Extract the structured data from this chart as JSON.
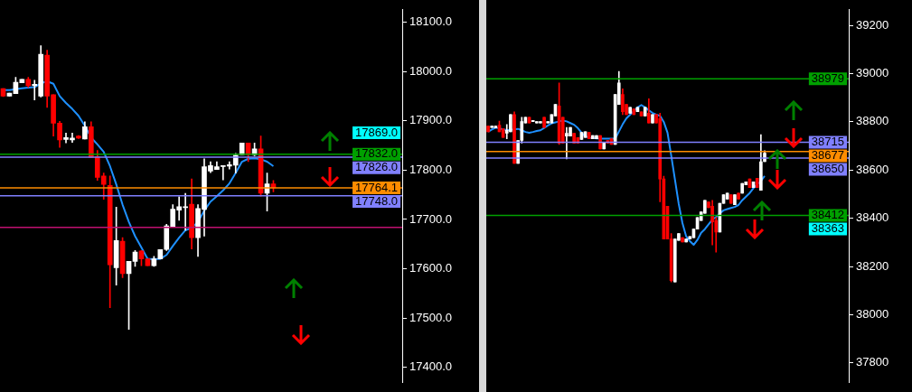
{
  "chart_data": [
    {
      "type": "candlestick",
      "tick_labels": "y",
      "categories": [
        null,
        null,
        null,
        null,
        null,
        null,
        null,
        null,
        null,
        null,
        null,
        null,
        null,
        null,
        null,
        null,
        null,
        null,
        null,
        null,
        null,
        null,
        null,
        null,
        null,
        null,
        null,
        null,
        null,
        null,
        null,
        null,
        null,
        null,
        null,
        null,
        null,
        null,
        null,
        null,
        null,
        null,
        null,
        null,
        null,
        null,
        null,
        null,
        null,
        null,
        null,
        null,
        null,
        null,
        null,
        null,
        null,
        null,
        null,
        null,
        null,
        null,
        null,
        null
      ],
      "ohlc": [
        [
          17965,
          17965,
          17949,
          17950
        ],
        [
          17950,
          17956,
          17950,
          17956
        ],
        [
          17955,
          17988,
          17955,
          17978
        ],
        [
          17977,
          17984,
          17977,
          17984
        ],
        [
          17984,
          17988,
          17968,
          17971
        ],
        [
          17971,
          17982,
          17942,
          17974
        ],
        [
          17950,
          18052,
          17948,
          18035
        ],
        [
          18033,
          18043,
          17927,
          17950
        ],
        [
          17953,
          17953,
          17869,
          17895
        ],
        [
          17895,
          17899,
          17846,
          17861
        ],
        [
          17862,
          17875,
          17855,
          17866
        ],
        [
          17861,
          17875,
          17856,
          17865
        ],
        [
          17869,
          17870,
          17864,
          17865
        ],
        [
          17863,
          17898,
          17863,
          17888
        ],
        [
          17888,
          17898,
          17826,
          17826
        ],
        [
          17827,
          17840,
          17779,
          17785
        ],
        [
          17788,
          17794,
          17741,
          17771
        ],
        [
          17769,
          17788,
          17521,
          17608
        ],
        [
          17602,
          17725,
          17567,
          17657
        ],
        [
          17656,
          17663,
          17582,
          17590
        ],
        [
          17590,
          17615,
          17477,
          17615
        ],
        [
          17615,
          17637,
          17605,
          17634
        ],
        [
          17636,
          17637,
          17606,
          17620
        ],
        [
          17620,
          17620,
          17606,
          17606
        ],
        [
          17606,
          17625,
          17605,
          17620
        ],
        [
          17620,
          17639,
          17620,
          17639
        ],
        [
          17639,
          17690,
          17637,
          17687
        ],
        [
          17686,
          17730,
          17686,
          17721
        ],
        [
          17719,
          17746,
          17698,
          17726
        ],
        [
          17724,
          17753,
          17678,
          17726
        ],
        [
          17731,
          17782,
          17640,
          17663
        ],
        [
          17663,
          17730,
          17625,
          17722
        ],
        [
          17720,
          17823,
          17666,
          17807
        ],
        [
          17798,
          17817,
          17795,
          17809
        ],
        [
          17801,
          17817,
          17801,
          17807
        ],
        [
          17807,
          17809,
          17780,
          17809
        ],
        [
          17808,
          17817,
          17802,
          17811
        ],
        [
          17810,
          17834,
          17794,
          17830
        ],
        [
          17831,
          17855,
          17831,
          17855
        ],
        [
          17855,
          17855,
          17817,
          17831
        ],
        [
          17831,
          17855,
          17829,
          17843
        ],
        [
          17843,
          17869,
          17747,
          17753
        ],
        [
          17753,
          17794,
          17717,
          17772
        ],
        [
          17772,
          17779,
          17756,
          17764
        ],
        null,
        null,
        null,
        null,
        null,
        null,
        null,
        null,
        null,
        null,
        null,
        null,
        null,
        null,
        null,
        null,
        null,
        null,
        null,
        null
      ],
      "series": [
        {
          "type": "line",
          "color": "#1e90ff",
          "values": [
            17962,
            17962,
            17964,
            17966,
            17967,
            17968,
            17976,
            17980,
            17975,
            17950,
            17936,
            17924,
            17910,
            17890,
            17866,
            17852,
            17837,
            17808,
            17771,
            17730,
            17695,
            17666,
            17643,
            17620,
            17620,
            17620,
            17628,
            17646,
            17663,
            17678,
            17683,
            17695,
            17718,
            17736,
            17747,
            17759,
            17773,
            17794,
            17817,
            17823,
            17824,
            17822,
            17817,
            17808,
            null,
            null,
            null,
            null,
            null,
            null,
            null,
            null,
            null,
            null,
            null,
            null,
            null,
            null,
            null,
            null,
            null,
            null,
            null,
            null
          ]
        }
      ],
      "ylim": [
        17370,
        18125
      ],
      "yticks": [
        {
          "value": 18100,
          "label": "18100.0"
        },
        {
          "value": 18000,
          "label": "18000.0"
        },
        {
          "value": 17900,
          "label": "17900.0"
        },
        {
          "value": 17800,
          "label": "17800.0"
        },
        {
          "value": 17700,
          "label": "17700.0"
        },
        {
          "value": 17600,
          "label": "17600.0"
        },
        {
          "value": 17500,
          "label": "17500.0"
        },
        {
          "value": 17400,
          "label": "17400.0"
        }
      ],
      "annotations": [
        "17869.0"
      ],
      "ref_lines": [
        {
          "axis": "y",
          "value": 17832,
          "label": "17832.0",
          "color": "#00a000",
          "line_style": "solid"
        },
        {
          "axis": "y",
          "value": 17826,
          "label": "17826.0",
          "color": "#8080ff",
          "line_style": "solid"
        },
        {
          "axis": "y",
          "value": 17764.1,
          "label": "17764.1",
          "color": "#ff8c00",
          "line_style": "solid"
        },
        {
          "axis": "y",
          "value": 17748,
          "label": "17748.0",
          "color": "#8080ff",
          "line_style": "solid"
        },
        {
          "axis": "y",
          "value": 17684,
          "color": "#c01070",
          "line_style": "solid"
        }
      ]
    },
    {
      "type": "candlestick",
      "tick_labels": "y",
      "categories": [
        null,
        null,
        null,
        null,
        null,
        null,
        null,
        null,
        null,
        null,
        null,
        null,
        null,
        null,
        null,
        null,
        null,
        null,
        null,
        null,
        null,
        null,
        null,
        null,
        null,
        null,
        null,
        null,
        null,
        null,
        null,
        null,
        null,
        null,
        null,
        null,
        null,
        null,
        null,
        null,
        null,
        null,
        null,
        null,
        null,
        null,
        null,
        null,
        null,
        null,
        null,
        null,
        null,
        null,
        null,
        null,
        null,
        null,
        null,
        null,
        null,
        null,
        null,
        null,
        null,
        null,
        null,
        null,
        null,
        null,
        null,
        null,
        null,
        null,
        null,
        null,
        null,
        null,
        null,
        null,
        null,
        null,
        null,
        null,
        null,
        null,
        null,
        null,
        null,
        null,
        null,
        null,
        null,
        null,
        null,
        null,
        null
      ],
      "ohlc": [
        [
          38783,
          38783,
          38759,
          38759
        ],
        [
          38777,
          38783,
          38777,
          38783
        ],
        [
          38775,
          38783,
          38775,
          38783
        ],
        [
          38786,
          38803,
          38759,
          38759
        ],
        [
          38771,
          38771,
          38735,
          38735
        ],
        [
          38753,
          38789,
          38730,
          38765
        ],
        [
          38759,
          38830,
          38759,
          38830
        ],
        [
          38830,
          38842,
          38628,
          38628
        ],
        [
          38628,
          38723,
          38628,
          38723
        ],
        [
          38723,
          38819,
          38712,
          38801
        ],
        [
          38795,
          38819,
          38795,
          38819
        ],
        [
          38819,
          38819,
          38795,
          38795
        ],
        [
          38801,
          38806,
          38801,
          38806
        ],
        [
          38795,
          38801,
          38795,
          38801
        ],
        [
          38795,
          38801,
          38795,
          38801
        ],
        [
          38819,
          38819,
          38777,
          38777
        ],
        [
          38795,
          38801,
          38795,
          38801
        ],
        [
          38795,
          38830,
          38795,
          38830
        ],
        [
          38824,
          38872,
          38824,
          38872
        ],
        [
          38866,
          38961,
          38706,
          38712
        ],
        [
          38819,
          38819,
          38712,
          38712
        ],
        [
          38741,
          38777,
          38646,
          38753
        ],
        [
          38741,
          38777,
          38741,
          38777
        ],
        [
          38753,
          38753,
          38712,
          38712
        ],
        [
          38735,
          38735,
          38712,
          38712
        ],
        [
          38727,
          38756,
          38727,
          38756
        ],
        [
          38735,
          38759,
          38735,
          38759
        ],
        [
          38756,
          38756,
          38730,
          38730
        ],
        [
          38730,
          38743,
          38730,
          38743
        ],
        [
          38730,
          38743,
          38730,
          38743
        ],
        [
          38743,
          38743,
          38688,
          38688
        ],
        [
          38688,
          38712,
          38688,
          38712
        ],
        [
          38723,
          38723,
          38712,
          38712
        ],
        [
          38730,
          38730,
          38706,
          38706
        ],
        [
          38706,
          38914,
          38706,
          38914
        ],
        [
          38872,
          39009,
          38872,
          38961
        ],
        [
          38914,
          38937,
          38830,
          38842
        ],
        [
          38872,
          38872,
          38830,
          38830
        ],
        [
          38836,
          38860,
          38836,
          38860
        ],
        [
          38854,
          38854,
          38830,
          38830
        ],
        [
          38842,
          38860,
          38842,
          38860
        ],
        [
          38842,
          38842,
          38824,
          38824
        ],
        [
          38824,
          38860,
          38824,
          38860
        ],
        [
          38836,
          38896,
          38795,
          38795
        ],
        [
          38795,
          38830,
          38795,
          38830
        ],
        [
          38830,
          38830,
          38795,
          38795
        ],
        [
          38813,
          38836,
          38468,
          38563
        ],
        [
          38563,
          38575,
          38314,
          38314
        ],
        [
          38450,
          38450,
          38314,
          38314
        ],
        [
          38314,
          38337,
          38136,
          38142
        ],
        [
          38136,
          38314,
          38136,
          38314
        ],
        [
          38308,
          38337,
          38308,
          38337
        ],
        [
          38320,
          38320,
          38302,
          38302
        ],
        [
          38302,
          38314,
          38302,
          38314
        ],
        [
          38314,
          38325,
          38314,
          38325
        ],
        [
          38320,
          38355,
          38320,
          38355
        ],
        [
          38355,
          38403,
          38355,
          38403
        ],
        [
          38391,
          38427,
          38391,
          38427
        ],
        [
          38421,
          38474,
          38421,
          38474
        ],
        [
          38468,
          38468,
          38444,
          38444
        ],
        [
          38450,
          38474,
          38290,
          38385
        ],
        [
          38391,
          38403,
          38260,
          38343
        ],
        [
          38343,
          38462,
          38343,
          38462
        ],
        [
          38462,
          38498,
          38462,
          38498
        ],
        [
          38480,
          38504,
          38480,
          38504
        ],
        [
          38498,
          38498,
          38462,
          38462
        ],
        [
          38456,
          38498,
          38456,
          38498
        ],
        [
          38504,
          38504,
          38480,
          38480
        ],
        [
          38504,
          38545,
          38504,
          38545
        ],
        [
          38539,
          38551,
          38539,
          38551
        ],
        [
          38563,
          38563,
          38527,
          38527
        ],
        [
          38527,
          38551,
          38527,
          38551
        ],
        [
          38566,
          38566,
          38527,
          38527
        ],
        [
          38516,
          38747,
          38516,
          38635
        ],
        [
          38635,
          38680,
          38635,
          38670
        ],
        null,
        null,
        null,
        null,
        null,
        null,
        null,
        null,
        null,
        null,
        null,
        null,
        null,
        null,
        null,
        null,
        null,
        null,
        null,
        null,
        null,
        null
      ],
      "series": [
        {
          "type": "line",
          "color": "#1e90ff",
          "values": [
            38759,
            38768,
            38776,
            38773,
            38769,
            38766,
            38767,
            38769,
            38771,
            38765,
            38758,
            38755,
            38758,
            38762,
            38765,
            38775,
            38785,
            38794,
            38798,
            38802,
            38805,
            38802,
            38795,
            38788,
            38774,
            38755,
            38740,
            38734,
            38733,
            38731,
            38730,
            38730,
            38730,
            38730,
            38730,
            38760,
            38790,
            38815,
            38830,
            38845,
            38860,
            38870,
            38860,
            38848,
            38837,
            38830,
            38825,
            38800,
            38755,
            38660,
            38560,
            38460,
            38380,
            38325,
            38305,
            38290,
            38310,
            38340,
            38355,
            38375,
            38395,
            38405,
            38420,
            38433,
            38438,
            38443,
            38447,
            38455,
            38475,
            38490,
            38505,
            38525,
            38540,
            38555,
            38575,
            null,
            null,
            null,
            null,
            null,
            null,
            null,
            null,
            null,
            null,
            null,
            null,
            null,
            null,
            null,
            null,
            null,
            null,
            null,
            null,
            null,
            null
          ]
        }
      ],
      "ylim": [
        37720,
        39265
      ],
      "yticks": [
        39200,
        39000,
        38800,
        38600,
        38400,
        38200,
        38000,
        37800
      ],
      "ref_lines": [
        {
          "axis": "y",
          "value": 38979,
          "label": "38979",
          "color": "#00a000",
          "line_style": "solid"
        },
        {
          "axis": "y",
          "value": 38715,
          "label": "38715",
          "color": "#8080ff",
          "line_style": "solid"
        },
        {
          "axis": "y",
          "value": 38677,
          "label": "38677",
          "color": "#ff8c00",
          "line_style": "solid"
        },
        {
          "axis": "y",
          "value": 38650,
          "label": "38650",
          "color": "#8080ff",
          "line_style": "solid"
        },
        {
          "axis": "y",
          "value": 38412,
          "label": "38412",
          "color": "#00a000",
          "line_style": "solid"
        }
      ],
      "annotations": [
        "38363"
      ]
    }
  ]
}
